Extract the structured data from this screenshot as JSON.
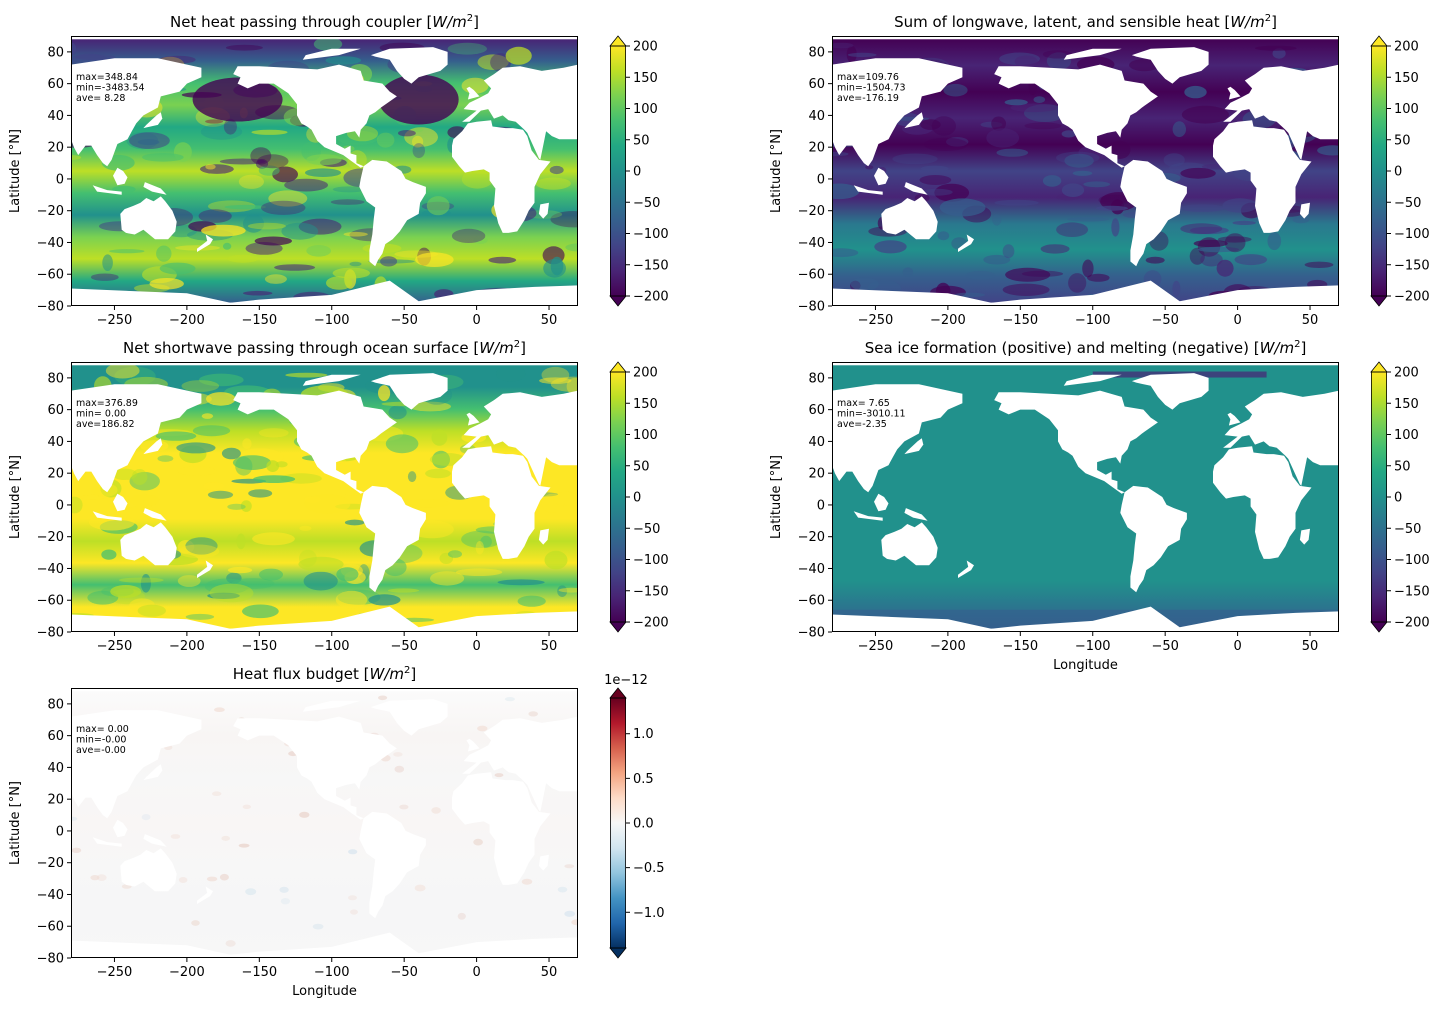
{
  "chart_data": [
    {
      "type": "heatmap",
      "title": "Net heat passing through coupler [W/m²]",
      "title_main": "Net heat passing through coupler ",
      "title_unit_w": "W",
      "title_unit_m": "m",
      "title_unit_exp": "2",
      "ylabel": "Latitude [°N]",
      "xlabel": "",
      "xlim": [
        -280,
        70
      ],
      "ylim": [
        -80,
        90
      ],
      "xticks": [
        -250,
        -200,
        -150,
        -100,
        -50,
        0,
        50
      ],
      "yticks": [
        -80,
        -60,
        -40,
        -20,
        0,
        20,
        40,
        60,
        80
      ],
      "stats": {
        "max": "max=348.84",
        "min": "min=-3483.54",
        "ave": "ave= 8.28"
      },
      "colorbar": {
        "cmap": "viridis",
        "range": [
          -200,
          200
        ],
        "ticks": [
          -200,
          -150,
          -100,
          -50,
          0,
          50,
          100,
          150,
          200
        ],
        "extend": "both"
      },
      "ocean_tone": "mixed"
    },
    {
      "type": "heatmap",
      "title": "Sum of longwave, latent, and sensible heat [W/m²]",
      "title_main": "Sum of longwave, latent, and sensible heat ",
      "title_unit_w": "W",
      "title_unit_m": "m",
      "title_unit_exp": "2",
      "ylabel": "Latitude [°N]",
      "xlabel": "",
      "xlim": [
        -280,
        70
      ],
      "ylim": [
        -80,
        90
      ],
      "xticks": [
        -250,
        -200,
        -150,
        -100,
        -50,
        0,
        50
      ],
      "yticks": [
        -80,
        -60,
        -40,
        -20,
        0,
        20,
        40,
        60,
        80
      ],
      "stats": {
        "max": "max=109.76",
        "min": "min=-1504.73",
        "ave": "ave=-176.19"
      },
      "colorbar": {
        "cmap": "viridis",
        "range": [
          -200,
          200
        ],
        "ticks": [
          -200,
          -150,
          -100,
          -50,
          0,
          50,
          100,
          150,
          200
        ],
        "extend": "both"
      },
      "ocean_tone": "dark"
    },
    {
      "type": "heatmap",
      "title": "Net shortwave passing through ocean surface [W/m²]",
      "title_main": "Net shortwave passing through ocean surface ",
      "title_unit_w": "W",
      "title_unit_m": "m",
      "title_unit_exp": "2",
      "ylabel": "Latitude [°N]",
      "xlabel": "",
      "xlim": [
        -280,
        70
      ],
      "ylim": [
        -80,
        90
      ],
      "xticks": [
        -250,
        -200,
        -150,
        -100,
        -50,
        0,
        50
      ],
      "yticks": [
        -80,
        -60,
        -40,
        -20,
        0,
        20,
        40,
        60,
        80
      ],
      "stats": {
        "max": "max=376.89",
        "min": "min= 0.00",
        "ave": "ave=186.82"
      },
      "colorbar": {
        "cmap": "viridis",
        "range": [
          -200,
          200
        ],
        "ticks": [
          -200,
          -150,
          -100,
          -50,
          0,
          50,
          100,
          150,
          200
        ],
        "extend": "both"
      },
      "ocean_tone": "bright"
    },
    {
      "type": "heatmap",
      "title": "Sea ice formation (positive) and melting (negative) [W/m²]",
      "title_main": "Sea ice formation (positive) and melting (negative) ",
      "title_unit_w": "W",
      "title_unit_m": "m",
      "title_unit_exp": "2",
      "ylabel": "Latitude [°N]",
      "xlabel": "Longitude",
      "xlim": [
        -280,
        70
      ],
      "ylim": [
        -80,
        90
      ],
      "xticks": [
        -250,
        -200,
        -150,
        -100,
        -50,
        0,
        50
      ],
      "yticks": [
        -80,
        -60,
        -40,
        -20,
        0,
        20,
        40,
        60,
        80
      ],
      "stats": {
        "max": "max= 7.65",
        "min": "min=-3010.11",
        "ave": "ave=-2.35"
      },
      "colorbar": {
        "cmap": "viridis",
        "range": [
          -200,
          200
        ],
        "ticks": [
          -200,
          -150,
          -100,
          -50,
          0,
          50,
          100,
          150,
          200
        ],
        "extend": "both"
      },
      "ocean_tone": "flat"
    },
    {
      "type": "heatmap",
      "title": "Heat flux budget [W/m²]",
      "title_main": "Heat flux budget ",
      "title_unit_w": "W",
      "title_unit_m": "m",
      "title_unit_exp": "2",
      "ylabel": "Latitude [°N]",
      "xlabel": "Longitude",
      "xlim": [
        -280,
        70
      ],
      "ylim": [
        -80,
        90
      ],
      "xticks": [
        -250,
        -200,
        -150,
        -100,
        -50,
        0,
        50
      ],
      "yticks": [
        -80,
        -60,
        -40,
        -20,
        0,
        20,
        40,
        60,
        80
      ],
      "stats": {
        "max": "max= 0.00",
        "min": "min=-0.00",
        "ave": "ave=-0.00"
      },
      "colorbar": {
        "cmap": "RdBu_r",
        "range": [
          -1.4,
          1.4
        ],
        "ticks": [
          -1.0,
          -0.5,
          0.0,
          0.5,
          1.0
        ],
        "tick_labels": [
          "−1.0",
          "−0.5",
          "0.0",
          "0.5",
          "1.0"
        ],
        "offset_text": "1e−12",
        "extend": "both"
      },
      "ocean_tone": "white"
    }
  ],
  "colors": {
    "viridis": [
      "#440154",
      "#482475",
      "#414487",
      "#355f8d",
      "#2a788e",
      "#21918c",
      "#22a884",
      "#44bf70",
      "#7ad151",
      "#bddf26",
      "#fde725"
    ],
    "rdbu_r": [
      "#053061",
      "#2166ac",
      "#4393c3",
      "#92c5de",
      "#d1e5f0",
      "#f7f7f7",
      "#fddbc7",
      "#f4a582",
      "#d6604d",
      "#b2182b",
      "#67001f"
    ],
    "land": "#ffffff"
  }
}
